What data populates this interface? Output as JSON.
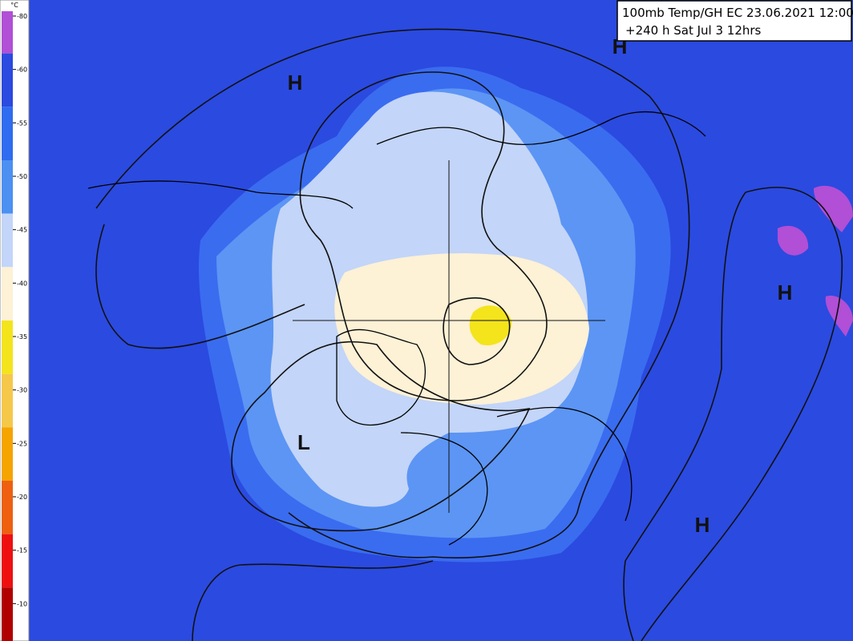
{
  "title": {
    "line1": "100mb Temp/GH EC 23.06.2021 12:00",
    "line2": "+240 h Sat Jul 3 12hrs"
  },
  "legend": {
    "unit": "°C",
    "labels": [
      "-80",
      "-60",
      "-55",
      "-50",
      "-45",
      "-40",
      "-35",
      "-30",
      "-25",
      "-20",
      "-15",
      "-10"
    ]
  },
  "markers": [
    {
      "label": "H"
    },
    {
      "label": "H"
    },
    {
      "label": "H"
    },
    {
      "label": "H"
    },
    {
      "label": "L"
    }
  ]
}
